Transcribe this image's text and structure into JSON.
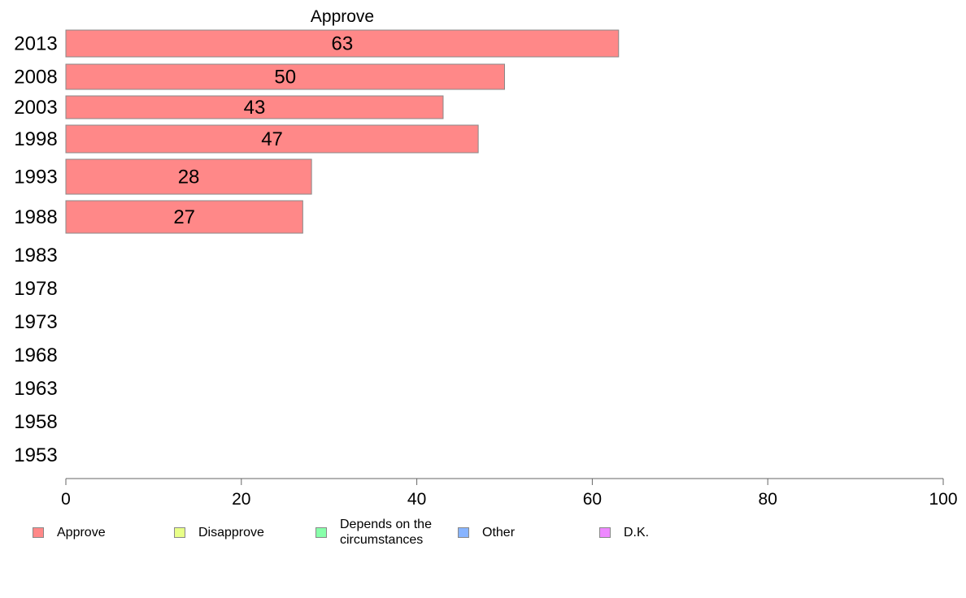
{
  "chart_data": {
    "type": "bar",
    "orientation": "horizontal",
    "title": "Approve",
    "categories": [
      "2013",
      "2008",
      "2003",
      "1998",
      "1993",
      "1988",
      "1983",
      "1978",
      "1973",
      "1968",
      "1963",
      "1958",
      "1953"
    ],
    "series": [
      {
        "name": "Approve",
        "values": [
          63,
          50,
          43,
          47,
          28,
          27,
          null,
          null,
          null,
          null,
          null,
          null,
          null
        ]
      }
    ],
    "data_labels": [
      "63",
      "50",
      "43",
      "47",
      "28",
      "27",
      "",
      "",
      "",
      "",
      "",
      "",
      ""
    ],
    "xlim": [
      0,
      100
    ],
    "xticks": [
      0,
      20,
      40,
      60,
      80,
      100
    ],
    "xlabel": "",
    "ylabel": "",
    "grid": false,
    "legend_position": "bottom",
    "legend": [
      {
        "label": "Approve",
        "color": "#ff8888"
      },
      {
        "label": "Disapprove",
        "color": "#e8ff88"
      },
      {
        "label": "Depends on the circumstances",
        "color": "#88ffaa"
      },
      {
        "label": "Other",
        "color": "#88b4ff"
      },
      {
        "label": "D.K.",
        "color": "#ee88ff"
      }
    ],
    "bar_color": "#ff8888",
    "bar_border_color": "#888888"
  }
}
